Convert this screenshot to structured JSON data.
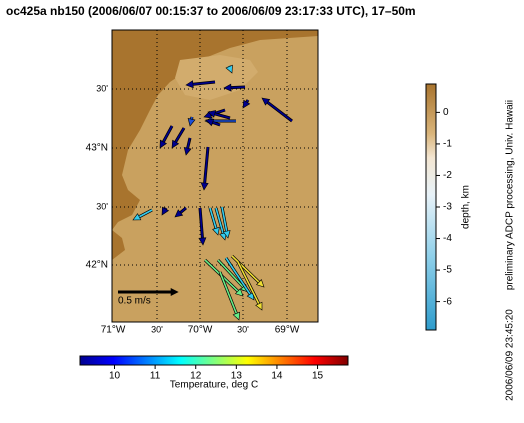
{
  "title": "oc425a nb150 (2006/06/07 00:15:37 to 2006/06/09 23:17:33 UTC), 17–50m",
  "map": {
    "lon_labels": [
      "71°W",
      "30'",
      "70°W",
      "30'",
      "69°W"
    ],
    "lat_labels": [
      "42°N",
      "30'",
      "43°N",
      "30'"
    ],
    "scale_label": "0.5 m/s"
  },
  "depth_colorbar": {
    "label": "depth, km",
    "lim": [
      -6.9,
      0.9
    ],
    "ticks": [
      0,
      -1,
      -2,
      -3,
      -4,
      -5,
      -6
    ]
  },
  "temperature_colorbar": {
    "label": "Temperature, deg C",
    "lim": [
      9.15,
      15.75
    ],
    "ticks": [
      10,
      11,
      12,
      13,
      14,
      15
    ]
  },
  "credit": "preliminary ADCP processing,   Univ. Hawaii",
  "timestamp": "2006/06/09 23:45:20"
}
